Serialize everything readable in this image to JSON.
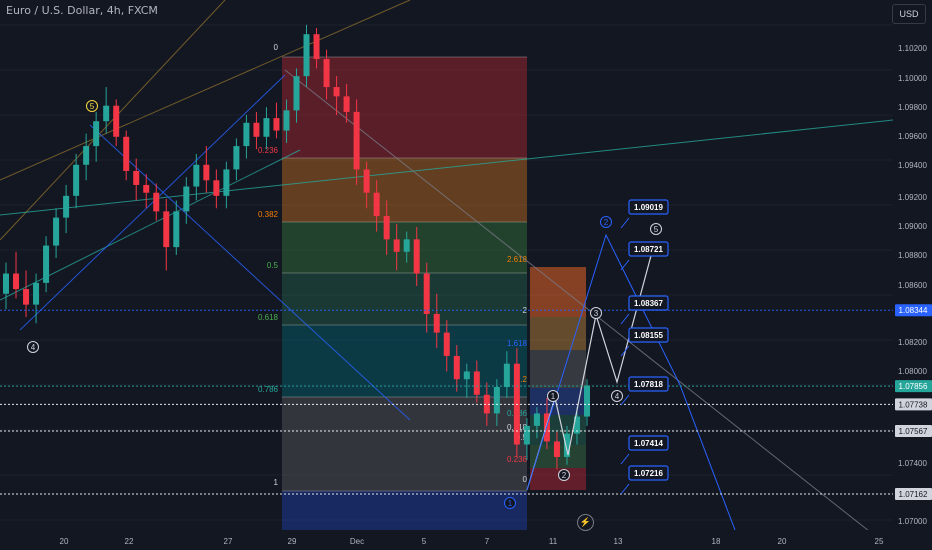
{
  "header": {
    "title": "Euro / U.S. Dollar, 4h, FXCM",
    "currency_button": "USD"
  },
  "chart_data": {
    "type": "candlestick",
    "title": "Euro / U.S. Dollar, 4h, FXCM",
    "x_tick_labels": [
      "20",
      "22",
      "27",
      "29",
      "Dec",
      "5",
      "7",
      "11",
      "13",
      "18",
      "20",
      "25"
    ],
    "y_tick_labels": [
      "1.10200",
      "1.10000",
      "1.09800",
      "1.09600",
      "1.09400",
      "1.09200",
      "1.09000",
      "1.08800",
      "1.08600",
      "1.08400",
      "1.08200",
      "1.08000",
      "1.07400",
      "1.07200",
      "1.07000"
    ],
    "ylim": [
      1.0693,
      1.1034
    ],
    "price_tags": [
      {
        "label": "1.08344",
        "value": 1.08344,
        "color": "#2962ff"
      },
      {
        "label": "1.07856",
        "value": 1.07856,
        "color": "#26a69a"
      },
      {
        "label": "1.07738",
        "value": 1.07738,
        "color": "#ffffff"
      },
      {
        "label": "1.07567",
        "value": 1.07567,
        "color": "#ffffff"
      },
      {
        "label": "1.07162",
        "value": 1.07162,
        "color": "#ffffff"
      }
    ],
    "fib_retracement_levels": [
      "0",
      "0.236",
      "0.382",
      "0.5",
      "0.618",
      "0.786",
      "1"
    ],
    "fib_extension_levels": [
      "2.618",
      "2",
      "1.618",
      "1.2",
      "0.786",
      "0.618",
      "0.5",
      "0.236",
      "0"
    ],
    "target_boxes": [
      "1.09019",
      "1.08721",
      "1.08367",
      "1.08155",
      "1.07818",
      "1.07414",
      "1.07216"
    ],
    "wave_labels": [
      "1",
      "2",
      "3",
      "4",
      "5"
    ],
    "candles": [
      [
        1.0845,
        1.0865,
        1.0835,
        1.0858
      ],
      [
        1.0858,
        1.0872,
        1.0842,
        1.0848
      ],
      [
        1.0848,
        1.086,
        1.083,
        1.0838
      ],
      [
        1.0838,
        1.0858,
        1.0826,
        1.0852
      ],
      [
        1.0852,
        1.0882,
        1.0846,
        1.0876
      ],
      [
        1.0876,
        1.09,
        1.0868,
        1.0894
      ],
      [
        1.0894,
        1.0915,
        1.0884,
        1.0908
      ],
      [
        1.0908,
        1.0935,
        1.09,
        1.0928
      ],
      [
        1.0928,
        1.0948,
        1.0918,
        1.094
      ],
      [
        1.094,
        1.0962,
        1.093,
        1.0956
      ],
      [
        1.0956,
        1.0978,
        1.0948,
        1.0966
      ],
      [
        1.0966,
        1.097,
        1.094,
        1.0946
      ],
      [
        1.0946,
        1.095,
        1.0918,
        1.0924
      ],
      [
        1.0924,
        1.0932,
        1.0905,
        1.0915
      ],
      [
        1.0915,
        1.0922,
        1.09,
        1.091
      ],
      [
        1.091,
        1.0916,
        1.0892,
        1.0898
      ],
      [
        1.0898,
        1.0906,
        1.086,
        1.0875
      ],
      [
        1.0875,
        1.0905,
        1.087,
        1.0898
      ],
      [
        1.0898,
        1.092,
        1.089,
        1.0914
      ],
      [
        1.0914,
        1.0935,
        1.0905,
        1.0928
      ],
      [
        1.0928,
        1.094,
        1.091,
        1.0918
      ],
      [
        1.0918,
        1.0925,
        1.09,
        1.0908
      ],
      [
        1.0908,
        1.093,
        1.09,
        1.0925
      ],
      [
        1.0925,
        1.0945,
        1.0918,
        1.094
      ],
      [
        1.094,
        1.096,
        1.0932,
        1.0955
      ],
      [
        1.0955,
        1.0962,
        1.0938,
        1.0946
      ],
      [
        1.0946,
        1.0965,
        1.0938,
        1.0958
      ],
      [
        1.0958,
        1.0968,
        1.0945,
        1.095
      ],
      [
        1.095,
        1.097,
        1.0942,
        1.0963
      ],
      [
        1.0963,
        1.099,
        1.0955,
        1.0985
      ],
      [
        1.0985,
        1.1018,
        1.0978,
        1.1012
      ],
      [
        1.1012,
        1.1016,
        1.099,
        1.0996
      ],
      [
        1.0996,
        1.1002,
        1.097,
        1.0978
      ],
      [
        1.0978,
        1.0985,
        1.096,
        1.0972
      ],
      [
        1.0972,
        1.098,
        1.0955,
        1.0962
      ],
      [
        1.0962,
        1.097,
        1.0915,
        1.0925
      ],
      [
        1.0925,
        1.093,
        1.09,
        1.091
      ],
      [
        1.091,
        1.0918,
        1.0885,
        1.0895
      ],
      [
        1.0895,
        1.0905,
        1.087,
        1.088
      ],
      [
        1.088,
        1.089,
        1.086,
        1.0872
      ],
      [
        1.0872,
        1.0885,
        1.0865,
        1.088
      ],
      [
        1.088,
        1.0888,
        1.085,
        1.0858
      ],
      [
        1.0858,
        1.0865,
        1.082,
        1.0832
      ],
      [
        1.0832,
        1.0845,
        1.081,
        1.082
      ],
      [
        1.082,
        1.0828,
        1.0795,
        1.0805
      ],
      [
        1.0805,
        1.0812,
        1.0782,
        1.079
      ],
      [
        1.079,
        1.08,
        1.0778,
        1.0795
      ],
      [
        1.0795,
        1.0802,
        1.0775,
        1.078
      ],
      [
        1.078,
        1.0788,
        1.076,
        1.0768
      ],
      [
        1.0768,
        1.079,
        1.076,
        1.0785
      ],
      [
        1.0785,
        1.0808,
        1.0778,
        1.08
      ],
      [
        1.08,
        1.081,
        1.074,
        1.0748
      ],
      [
        1.0748,
        1.0765,
        1.0738,
        1.076
      ],
      [
        1.076,
        1.0772,
        1.0752,
        1.0768
      ],
      [
        1.0768,
        1.0778,
        1.0745,
        1.075
      ],
      [
        1.075,
        1.0756,
        1.0732,
        1.074
      ],
      [
        1.074,
        1.076,
        1.0735,
        1.0755
      ],
      [
        1.0755,
        1.0772,
        1.0748,
        1.0766
      ],
      [
        1.0766,
        1.079,
        1.076,
        1.0786
      ]
    ]
  },
  "icons": {
    "replay": "lightning-icon"
  }
}
